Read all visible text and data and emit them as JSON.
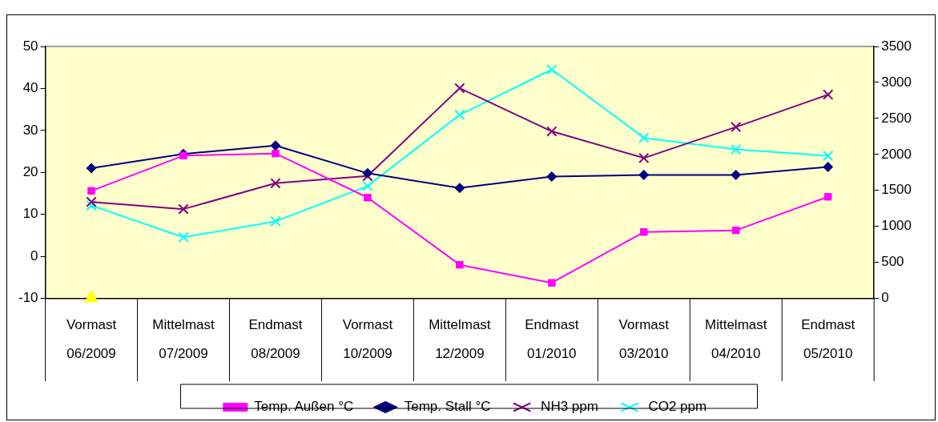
{
  "chart_data": {
    "type": "line",
    "categories": [
      "Vormast\n06/2009",
      "Mittelmast\n07/2009",
      "Endmast\n08/2009",
      "Vormast\n10/2009",
      "Mittelmast\n12/2009",
      "Endmast\n01/2010",
      "Vormast\n03/2010",
      "Mittelmast\n04/2010",
      "Endmast\n05/2010"
    ],
    "series": [
      {
        "name": "Temp. Außen °C",
        "color": "#ff00ff",
        "marker": "square",
        "values": [
          15.6,
          24,
          24.5,
          14,
          -2,
          -6.3,
          5.8,
          6.2,
          14.2
        ]
      },
      {
        "name": "Temp. Stall °C",
        "color": "#000080",
        "marker": "diamond",
        "values": [
          21,
          24.4,
          26.4,
          19.8,
          16.3,
          19,
          19.4,
          19.4,
          21.3
        ]
      },
      {
        "name": "NH3 ppm",
        "color": "#800080",
        "marker": "cross",
        "axis": "y2",
        "values": [
          1340,
          1240,
          1600,
          1700,
          2920,
          2320,
          1950,
          2380,
          2830
        ]
      },
      {
        "name": "CO2 ppm",
        "color": "#00ffff",
        "marker": "cross",
        "axis": "y2",
        "values": [
          1290,
          850,
          1070,
          1560,
          2550,
          3180,
          2230,
          2070,
          1980
        ]
      },
      {
        "type": "scatter",
        "color": "#ffff00",
        "marker": "triangle",
        "values": [
          -10,
          null,
          null,
          null,
          null,
          null,
          null,
          null,
          null
        ]
      }
    ],
    "ylim": [
      -10,
      50
    ],
    "yticks": [
      -10,
      0,
      10,
      20,
      30,
      40,
      50
    ],
    "y2lim": [
      0,
      3500
    ],
    "y2ticks": [
      0,
      500,
      1000,
      1500,
      2000,
      2500,
      3000,
      3500
    ],
    "grid": false,
    "legend": "bottom"
  }
}
